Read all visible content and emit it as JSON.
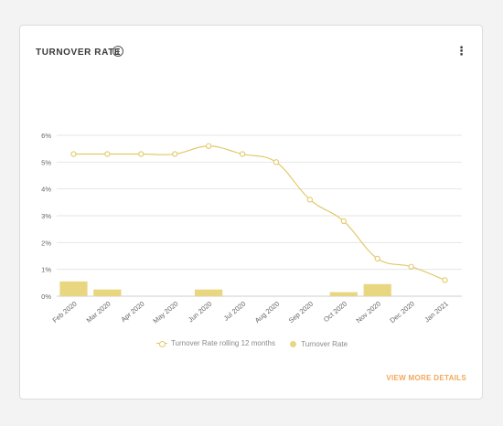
{
  "card": {
    "title": "TURNOVER RATE",
    "info_icon": "info-icon",
    "menu_icon": "more-vertical-icon",
    "view_more_label": "VIEW MORE DETAILS"
  },
  "colors": {
    "line": "#e2c96a",
    "bar": "#e8d780",
    "link": "#f2a85a",
    "grid": "#e6e6e6",
    "axis_text": "#666666"
  },
  "chart_data": {
    "type": "bar",
    "categories": [
      "Feb 2020",
      "Mar 2020",
      "Apr 2020",
      "May 2020",
      "Jun 2020",
      "Jul 2020",
      "Aug 2020",
      "Sep 2020",
      "Oct 2020",
      "Nov 2020",
      "Dec 2020",
      "Jan 2021"
    ],
    "y_ticks": [
      "0%",
      "1%",
      "2%",
      "3%",
      "4%",
      "5%",
      "6%"
    ],
    "ylim": [
      0,
      6
    ],
    "grid": true,
    "legend_position": "bottom",
    "series": [
      {
        "name": "Turnover Rate rolling 12 months",
        "kind": "line",
        "values": [
          5.3,
          5.3,
          5.3,
          5.3,
          5.6,
          5.3,
          5.0,
          3.6,
          2.8,
          1.4,
          1.1,
          0.6
        ]
      },
      {
        "name": "Turnover Rate",
        "kind": "bar",
        "values": [
          0.55,
          0.25,
          0,
          0,
          0.25,
          0,
          0,
          0,
          0.15,
          0.45,
          0,
          0
        ]
      }
    ]
  }
}
